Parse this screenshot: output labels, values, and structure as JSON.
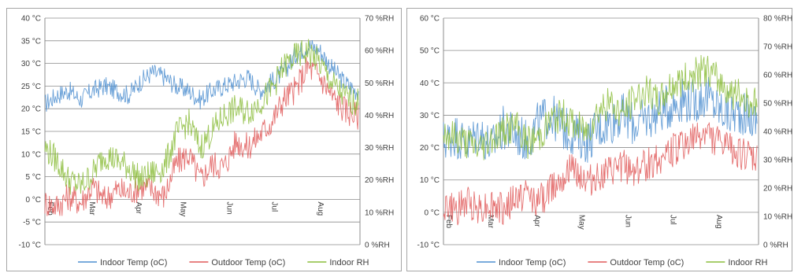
{
  "colors": {
    "indoor_temp": "#4f8fd0",
    "outdoor_temp": "#e05a5a",
    "indoor_rh": "#8cbd3c",
    "grid": "#8c8c8c"
  },
  "chart_data": [
    {
      "type": "line",
      "y_tick_labels": [
        "-10 °C",
        "-5 °C",
        "0 °C",
        "5 °C",
        "10 °C",
        "15 °C",
        "20 °C",
        "25 °C",
        "30 °C",
        "35 °C",
        "40 °C"
      ],
      "y2_tick_labels": [
        "0 %RH",
        "10 %RH",
        "20 %RH",
        "30 %RH",
        "40 %RH",
        "50 %RH",
        "60 %RH",
        "70 %RH"
      ],
      "x_tick_labels": [
        "Feb",
        "Mar",
        "Apr",
        "May",
        "Jun",
        "Jul",
        "Aug"
      ],
      "ylim": [
        -10,
        40
      ],
      "y2lim": [
        0,
        70
      ],
      "grid": true,
      "legend": "bottom",
      "x": [
        1,
        9,
        17,
        25,
        33,
        41,
        49,
        57,
        65,
        73,
        81,
        89,
        97,
        105,
        113,
        121,
        129,
        137,
        145,
        153,
        161,
        169,
        177,
        185,
        193,
        201,
        209
      ],
      "series": [
        {
          "name": "Indoor Temp (oC)",
          "axis": "left",
          "values": [
            21,
            23,
            24,
            22,
            24,
            25,
            24,
            23,
            26,
            28,
            27,
            25,
            24,
            22,
            24,
            25,
            26,
            27,
            24,
            26,
            28,
            32,
            34,
            33,
            29,
            26,
            24
          ]
        },
        {
          "name": "Outdoor Temp (oC)",
          "axis": "right",
          "values": [
            13,
            12,
            15,
            13,
            18,
            14,
            17,
            16,
            18,
            17,
            15,
            25,
            28,
            20,
            25,
            24,
            32,
            30,
            34,
            38,
            45,
            48,
            55,
            52,
            46,
            42,
            40
          ]
        },
        {
          "name": "Indoor RH",
          "axis": "right",
          "values": [
            30,
            26,
            20,
            18,
            22,
            28,
            26,
            24,
            20,
            22,
            24,
            34,
            38,
            30,
            35,
            40,
            42,
            41,
            44,
            48,
            55,
            58,
            60,
            56,
            50,
            46,
            44
          ]
        }
      ]
    },
    {
      "type": "line",
      "y_tick_labels": [
        "-10 °C",
        "0 °C",
        "10 °C",
        "20 °C",
        "30 °C",
        "40 °C",
        "50 °C",
        "60 °C"
      ],
      "y2_tick_labels": [
        "0 %RH",
        "10 %RH",
        "20 %RH",
        "30 %RH",
        "40 %RH",
        "50 %RH",
        "60 %RH",
        "70 %RH",
        "80 %RH"
      ],
      "x_tick_labels": [
        "Feb",
        "Mar",
        "Apr",
        "May",
        "Jun",
        "Jul",
        "Aug"
      ],
      "ylim": [
        -10,
        60
      ],
      "y2lim": [
        0,
        80
      ],
      "grid": true,
      "legend": "bottom",
      "x": [
        1,
        9,
        17,
        25,
        33,
        41,
        49,
        57,
        65,
        73,
        81,
        89,
        97,
        105,
        113,
        121,
        129,
        137,
        145,
        153,
        161,
        169,
        177,
        185,
        193,
        201,
        209
      ],
      "series": [
        {
          "name": "Indoor Temp (oC)",
          "axis": "left",
          "values": [
            22,
            24,
            21,
            25,
            20,
            26,
            24,
            22,
            28,
            30,
            26,
            24,
            22,
            26,
            28,
            30,
            27,
            29,
            31,
            33,
            35,
            34,
            36,
            32,
            30,
            31,
            28
          ]
        },
        {
          "name": "Outdoor Temp (oC)",
          "axis": "right",
          "values": [
            14,
            12,
            15,
            13,
            14,
            12,
            16,
            18,
            15,
            20,
            25,
            27,
            22,
            24,
            25,
            28,
            26,
            28,
            30,
            33,
            35,
            37,
            40,
            36,
            34,
            32,
            30
          ]
        },
        {
          "name": "Indoor RH",
          "axis": "right",
          "values": [
            40,
            38,
            36,
            34,
            38,
            40,
            42,
            36,
            38,
            44,
            46,
            42,
            40,
            48,
            50,
            46,
            52,
            54,
            50,
            56,
            58,
            60,
            62,
            58,
            54,
            52,
            50
          ]
        }
      ]
    }
  ],
  "legend": {
    "items": [
      "Indoor Temp (oC)",
      "Outdoor Temp (oC)",
      "Indoor RH"
    ]
  }
}
